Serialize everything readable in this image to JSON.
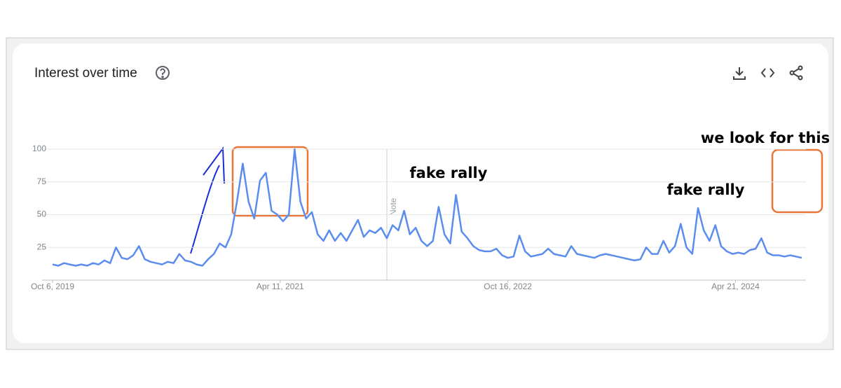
{
  "chart_data": {
    "type": "line",
    "title": "Interest over time",
    "x": [
      "2019-10-06",
      "2019-10-20",
      "2019-11-03",
      "2019-11-17",
      "2019-12-01",
      "2019-12-15",
      "2019-12-29",
      "2020-01-12",
      "2020-01-26",
      "2020-02-09",
      "2020-02-23",
      "2020-03-08",
      "2020-03-22",
      "2020-04-05",
      "2020-04-19",
      "2020-05-03",
      "2020-05-17",
      "2020-05-31",
      "2020-06-14",
      "2020-06-28",
      "2020-07-12",
      "2020-07-26",
      "2020-08-09",
      "2020-08-23",
      "2020-09-06",
      "2020-09-20",
      "2020-10-04",
      "2020-10-18",
      "2020-11-01",
      "2020-11-15",
      "2020-11-29",
      "2020-12-13",
      "2020-12-27",
      "2021-01-10",
      "2021-01-24",
      "2021-02-07",
      "2021-02-21",
      "2021-03-07",
      "2021-03-21",
      "2021-04-04",
      "2021-04-18",
      "2021-05-02",
      "2021-05-16",
      "2021-05-30",
      "2021-06-13",
      "2021-06-27",
      "2021-07-11",
      "2021-07-25",
      "2021-08-08",
      "2021-08-22",
      "2021-09-05",
      "2021-09-19",
      "2021-10-03",
      "2021-10-17",
      "2021-10-31",
      "2021-11-14",
      "2021-11-28",
      "2021-12-12",
      "2021-12-26",
      "2022-01-09",
      "2022-01-23",
      "2022-02-06",
      "2022-02-20",
      "2022-03-06",
      "2022-03-20",
      "2022-04-03",
      "2022-04-17",
      "2022-05-01",
      "2022-05-15",
      "2022-05-29",
      "2022-06-12",
      "2022-06-26",
      "2022-07-10",
      "2022-07-24",
      "2022-08-07",
      "2022-08-21",
      "2022-09-04",
      "2022-09-18",
      "2022-10-02",
      "2022-10-16",
      "2022-10-30",
      "2022-11-13",
      "2022-11-27",
      "2022-12-11",
      "2022-12-25",
      "2023-01-08",
      "2023-01-22",
      "2023-02-05",
      "2023-02-19",
      "2023-03-05",
      "2023-03-19",
      "2023-04-02",
      "2023-04-16",
      "2023-04-30",
      "2023-05-14",
      "2023-05-28",
      "2023-06-11",
      "2023-06-25",
      "2023-07-09",
      "2023-07-23",
      "2023-08-06",
      "2023-08-20",
      "2023-09-03",
      "2023-09-17",
      "2023-10-01",
      "2023-10-15",
      "2023-10-29",
      "2023-11-12",
      "2023-11-26",
      "2023-12-10",
      "2023-12-24",
      "2024-01-07",
      "2024-01-21",
      "2024-02-04",
      "2024-02-18",
      "2024-03-03",
      "2024-03-17",
      "2024-03-31",
      "2024-04-14",
      "2024-04-28",
      "2024-05-12",
      "2024-05-26",
      "2024-06-09",
      "2024-06-23",
      "2024-07-07",
      "2024-07-21",
      "2024-08-04",
      "2024-08-18",
      "2024-09-01",
      "2024-09-15",
      "2024-09-29"
    ],
    "values": [
      12,
      11,
      13,
      12,
      11,
      12,
      11,
      13,
      12,
      15,
      13,
      25,
      17,
      16,
      19,
      26,
      16,
      14,
      13,
      12,
      14,
      13,
      20,
      15,
      14,
      12,
      11,
      16,
      20,
      28,
      25,
      35,
      60,
      89,
      60,
      47,
      76,
      82,
      53,
      50,
      45,
      50,
      100,
      60,
      47,
      52,
      35,
      30,
      38,
      30,
      36,
      30,
      38,
      46,
      33,
      38,
      36,
      40,
      32,
      42,
      38,
      53,
      35,
      40,
      30,
      26,
      30,
      56,
      35,
      28,
      65,
      37,
      32,
      26,
      23,
      22,
      22,
      24,
      19,
      17,
      18,
      34,
      22,
      18,
      19,
      20,
      24,
      20,
      19,
      18,
      26,
      20,
      19,
      18,
      17,
      19,
      20,
      19,
      18,
      17,
      16,
      15,
      16,
      25,
      20,
      20,
      30,
      21,
      26,
      43,
      25,
      20,
      55,
      38,
      30,
      42,
      26,
      22,
      20,
      21,
      20,
      23,
      24,
      32,
      21,
      19,
      19,
      18,
      19,
      18,
      17
    ],
    "color": "#5b8def",
    "xlim": [
      "2019-10-06",
      "2024-09-29"
    ],
    "xticks": [
      {
        "value": "2019-10-06",
        "label": "Oct 6, 2019"
      },
      {
        "value": "2021-04-11",
        "label": "Apr 11, 2021"
      },
      {
        "value": "2022-10-16",
        "label": "Oct 16, 2022"
      },
      {
        "value": "2024-04-21",
        "label": "Apr 21, 2024"
      }
    ],
    "ylim": [
      0,
      100
    ],
    "yticks": [
      25,
      50,
      75,
      100
    ],
    "grid": true,
    "note": "Note",
    "annotations": [
      "fake rally",
      "fake rally",
      "we look for this"
    ]
  }
}
